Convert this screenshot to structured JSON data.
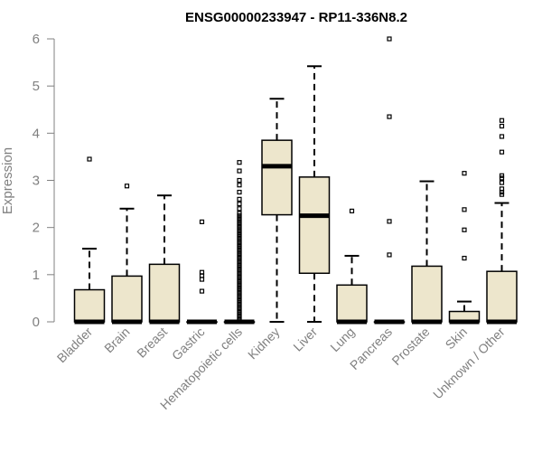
{
  "chart_data": {
    "type": "box",
    "title": "ENSG00000233947 - RP11-336N8.2",
    "xlabel": "",
    "ylabel": "Expression",
    "ylim": [
      0,
      6
    ],
    "yticks": [
      0,
      1,
      2,
      3,
      4,
      5,
      6
    ],
    "grid": false,
    "box_fill": "#ede6cc",
    "categories": [
      "Bladder",
      "Brain",
      "Breast",
      "Gastric",
      "Hematopoietic cells",
      "Kidney",
      "Liver",
      "Lung",
      "Pancreas",
      "Prostate",
      "Skin",
      "Unknown / Other"
    ],
    "boxes": [
      {
        "min": 0,
        "q1": 0,
        "median": 0,
        "q3": 0.68,
        "max": 1.55,
        "outliers": [
          3.45
        ]
      },
      {
        "min": 0,
        "q1": 0,
        "median": 0,
        "q3": 0.97,
        "max": 2.4,
        "outliers": [
          2.88
        ]
      },
      {
        "min": 0,
        "q1": 0,
        "median": 0,
        "q3": 1.22,
        "max": 2.68,
        "outliers": []
      },
      {
        "min": 0,
        "q1": 0,
        "median": 0,
        "q3": 0,
        "max": 0,
        "outliers": [
          0.65,
          0.9,
          0.98,
          1.05,
          2.12
        ]
      },
      {
        "min": 0,
        "q1": 0,
        "median": 0,
        "q3": 0,
        "max": 0,
        "outliers": [
          0.05,
          0.1,
          0.15,
          0.2,
          0.25,
          0.3,
          0.35,
          0.4,
          0.45,
          0.5,
          0.55,
          0.6,
          0.65,
          0.7,
          0.75,
          0.8,
          0.85,
          0.9,
          0.95,
          1.0,
          1.05,
          1.1,
          1.15,
          1.2,
          1.25,
          1.3,
          1.35,
          1.4,
          1.45,
          1.5,
          1.55,
          1.6,
          1.65,
          1.7,
          1.75,
          1.8,
          1.85,
          1.9,
          1.95,
          2.0,
          2.05,
          2.1,
          2.15,
          2.2,
          2.25,
          2.3,
          2.4,
          2.5,
          2.6,
          2.75,
          2.9,
          3.0,
          3.2,
          3.38
        ]
      },
      {
        "min": 0,
        "q1": 2.27,
        "median": 3.3,
        "q3": 3.85,
        "max": 4.73,
        "outliers": []
      },
      {
        "min": 0,
        "q1": 1.03,
        "median": 2.25,
        "q3": 3.07,
        "max": 5.42,
        "outliers": []
      },
      {
        "min": 0,
        "q1": 0,
        "median": 0,
        "q3": 0.78,
        "max": 1.4,
        "outliers": [
          2.35
        ]
      },
      {
        "min": 0,
        "q1": 0,
        "median": 0,
        "q3": 0,
        "max": 0,
        "outliers": [
          1.42,
          2.13,
          4.35,
          6.0
        ]
      },
      {
        "min": 0,
        "q1": 0,
        "median": 0,
        "q3": 1.18,
        "max": 2.98,
        "outliers": []
      },
      {
        "min": 0,
        "q1": 0,
        "median": 0,
        "q3": 0.22,
        "max": 0.43,
        "outliers": [
          1.35,
          1.95,
          2.38,
          3.15
        ]
      },
      {
        "min": 0,
        "q1": 0,
        "median": 0,
        "q3": 1.07,
        "max": 2.52,
        "outliers": [
          2.7,
          2.75,
          2.82,
          2.95,
          3.05,
          3.1,
          3.6,
          3.93,
          4.15,
          4.27
        ]
      }
    ]
  }
}
